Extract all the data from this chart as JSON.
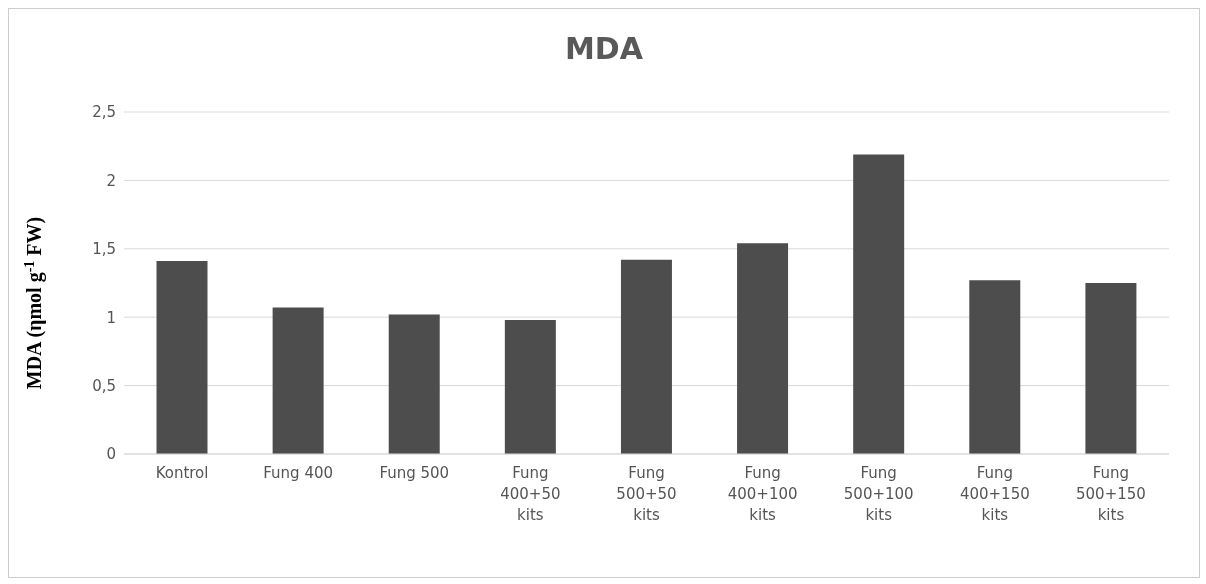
{
  "chart_data": {
    "type": "bar",
    "title": "MDA",
    "ylabel": "MDA (ηmol g$^{-1}$ FW)",
    "categories": [
      "Kontrol",
      "Fung 400",
      "Fung 500",
      "Fung\n400+50\nkits",
      "Fung\n500+50\nkits",
      "Fung\n400+100\nkits",
      "Fung\n500+100\nkits",
      "Fung\n400+150\nkits",
      "Fung\n500+150\nkits"
    ],
    "values": [
      1.41,
      1.07,
      1.02,
      0.98,
      1.42,
      1.54,
      2.19,
      1.27,
      1.25
    ],
    "color": "#4d4d4d",
    "ylim": [
      0,
      2.5
    ],
    "yticks": [
      0,
      {
        "value": 0.5,
        "label": "0,5"
      },
      1,
      {
        "value": 1.5,
        "label": "1,5"
      },
      2,
      {
        "value": 2.5,
        "label": "2,5"
      }
    ],
    "grid": "y"
  }
}
